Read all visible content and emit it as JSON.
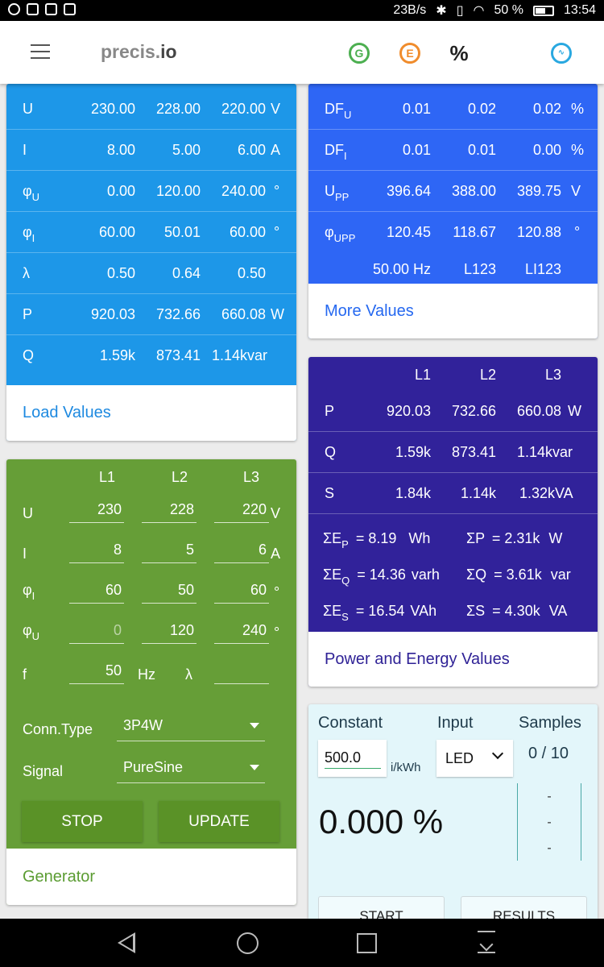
{
  "status_bar": {
    "speed": "23B/s",
    "battery": "50 %",
    "time": "13:54"
  },
  "app_bar": {
    "brand_light": "precis.",
    "brand_bold": "io",
    "icons": [
      "G",
      "E",
      "%",
      "wave"
    ]
  },
  "load_card": {
    "rows": [
      {
        "label": "U",
        "sub": "",
        "l1": "230.00",
        "l2": "228.00",
        "l3": "220.00",
        "unit": "V"
      },
      {
        "label": "I",
        "sub": "",
        "l1": "8.00",
        "l2": "5.00",
        "l3": "6.00",
        "unit": "A"
      },
      {
        "label": "φ",
        "sub": "U",
        "l1": "0.00",
        "l2": "120.00",
        "l3": "240.00",
        "unit": "°"
      },
      {
        "label": "φ",
        "sub": "I",
        "l1": "60.00",
        "l2": "50.01",
        "l3": "60.00",
        "unit": "°"
      },
      {
        "label": "λ",
        "sub": "",
        "l1": "0.50",
        "l2": "0.64",
        "l3": "0.50",
        "unit": ""
      },
      {
        "label": "P",
        "sub": "",
        "l1": "920.03",
        "l2": "732.66",
        "l3": "660.08",
        "unit": "W"
      },
      {
        "label": "Q",
        "sub": "",
        "l1": "1.59k",
        "l2": "873.41",
        "l3": "1.14k",
        "unit": "var"
      }
    ],
    "footer": "Load Values"
  },
  "more_card": {
    "rows": [
      {
        "label": "DF",
        "sub": "U",
        "l1": "0.01",
        "l2": "0.02",
        "l3": "0.02",
        "unit": "%"
      },
      {
        "label": "DF",
        "sub": "I",
        "l1": "0.01",
        "l2": "0.01",
        "l3": "0.00",
        "unit": "%"
      },
      {
        "label": "U",
        "sub": "PP",
        "l1": "396.64",
        "l2": "388.00",
        "l3": "389.75",
        "unit": "V"
      },
      {
        "label": "φ",
        "sub": "UPP",
        "l1": "120.45",
        "l2": "118.67",
        "l3": "120.88",
        "unit": "°"
      }
    ],
    "freq": "50.00 Hz",
    "seq1": "L123",
    "seq2": "LI123",
    "footer": "More Values"
  },
  "power_card": {
    "headers": [
      "L1",
      "L2",
      "L3"
    ],
    "rows": [
      {
        "label": "P",
        "l1": "920.03",
        "l2": "732.66",
        "l3": "660.08",
        "unit": "W"
      },
      {
        "label": "Q",
        "l1": "1.59k",
        "l2": "873.41",
        "l3": "1.14k",
        "unit": "var"
      },
      {
        "label": "S",
        "l1": "1.84k",
        "l2": "1.14k",
        "l3": "1.32k",
        "unit": "VA"
      }
    ],
    "energy": [
      {
        "sym": "ΣE",
        "sub": "P",
        "value": "= 8.19",
        "unit": "Wh",
        "sum_sym": "ΣP",
        "sum_value": "= 2.31k",
        "sum_unit": "W"
      },
      {
        "sym": "ΣE",
        "sub": "Q",
        "value": "= 14.36",
        "unit": "varh",
        "sum_sym": "ΣQ",
        "sum_value": "= 3.61k",
        "sum_unit": "var"
      },
      {
        "sym": "ΣE",
        "sub": "S",
        "value": "= 16.54",
        "unit": "VAh",
        "sum_sym": "ΣS",
        "sum_value": "= 4.30k",
        "sum_unit": "VA"
      }
    ],
    "footer": "Power and Energy Values"
  },
  "generator": {
    "headers": [
      "L1",
      "L2",
      "L3"
    ],
    "rows": [
      {
        "label": "U",
        "sub": "",
        "l1": "230",
        "l2": "228",
        "l3": "220",
        "unit": "V"
      },
      {
        "label": "I",
        "sub": "",
        "l1": "8",
        "l2": "5",
        "l3": "6",
        "unit": "A"
      },
      {
        "label": "φ",
        "sub": "I",
        "l1": "60",
        "l2": "50",
        "l3": "60",
        "unit": "°"
      },
      {
        "label": "φ",
        "sub": "U",
        "l1": "0",
        "l2": "120",
        "l3": "240",
        "unit": "°"
      }
    ],
    "f_label": "f",
    "f_value": "50",
    "f_unit": "Hz",
    "lambda_label": "λ",
    "lambda_value": "",
    "conn_label": "Conn.Type",
    "conn_value": "3P4W",
    "signal_label": "Signal",
    "signal_value": "PureSine",
    "stop_label": "STOP",
    "update_label": "UPDATE",
    "footer": "Generator"
  },
  "meter": {
    "constant_label": "Constant",
    "constant_value": "500.0",
    "constant_unit": "i/kWh",
    "input_label": "Input",
    "input_value": "LED",
    "samples_label": "Samples",
    "samples_value": "0 / 10",
    "error_value": "0.000 %",
    "dashes": [
      "-",
      "-",
      "-"
    ],
    "start_label": "START",
    "results_label": "RESULTS"
  },
  "colors": {
    "load": "#1d97e8",
    "more": "#2e66f5",
    "power": "#31229a",
    "generator": "#669e37",
    "meter": "#e3f6fa"
  }
}
